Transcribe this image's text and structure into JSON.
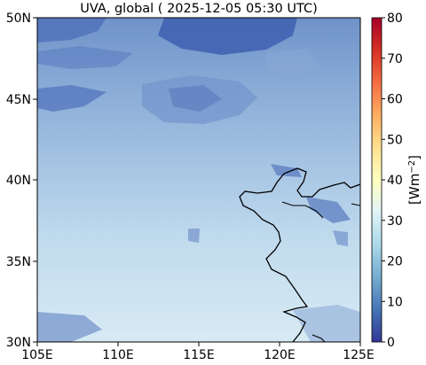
{
  "title": "UVA, global ( 2025-12-05 05:30 UTC)",
  "map": {
    "lon_range": [
      105,
      125
    ],
    "lat_range": [
      30,
      50
    ],
    "x_ticks": [
      "105E",
      "110E",
      "115E",
      "120E",
      "125E"
    ],
    "y_ticks": [
      "30N",
      "35N",
      "40N",
      "45N",
      "50N"
    ]
  },
  "colorbar": {
    "range": [
      0,
      80
    ],
    "ticks": [
      "0",
      "10",
      "20",
      "30",
      "40",
      "50",
      "60",
      "70",
      "80"
    ],
    "label_base": "[Wm",
    "label_exp": "−2",
    "label_end": "]",
    "colormap": [
      "#313695",
      "#4575b4",
      "#74add1",
      "#abd9e9",
      "#e0f3f8",
      "#ffffbf",
      "#fee090",
      "#fdae61",
      "#f46d43",
      "#d73027",
      "#a50026"
    ]
  }
}
